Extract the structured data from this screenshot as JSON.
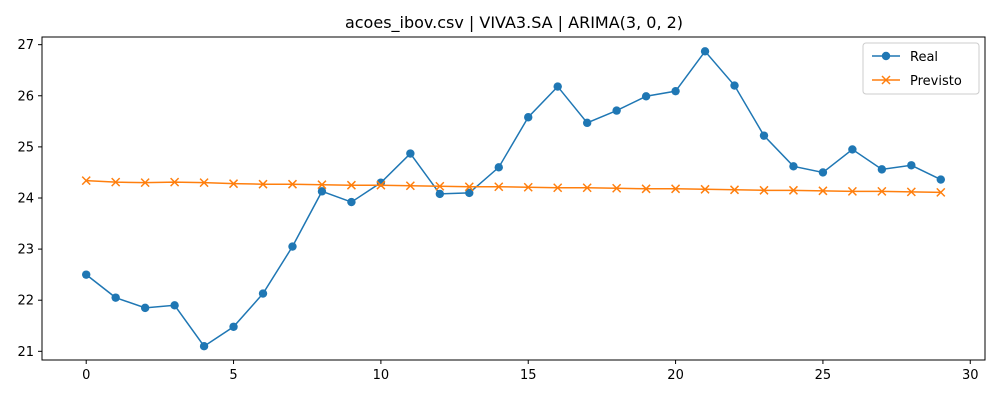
{
  "chart_data": {
    "type": "line",
    "title": "acoes_ibov.csv | VIVA3.SA | ARIMA(3, 0, 2)",
    "xlabel": "",
    "ylabel": "",
    "xlim": [
      -1.5,
      30.5
    ],
    "ylim": [
      20.83,
      27.15
    ],
    "xticks": [
      0,
      5,
      10,
      15,
      20,
      25,
      30
    ],
    "yticks": [
      21,
      22,
      23,
      24,
      25,
      26,
      27
    ],
    "grid": false,
    "legend_position": "top-right",
    "x": [
      0,
      1,
      2,
      3,
      4,
      5,
      6,
      7,
      8,
      9,
      10,
      11,
      12,
      13,
      14,
      15,
      16,
      17,
      18,
      19,
      20,
      21,
      22,
      23,
      24,
      25,
      26,
      27,
      28,
      29
    ],
    "series": [
      {
        "name": "Real",
        "color": "#1f77b4",
        "marker": "circle",
        "values": [
          22.5,
          22.05,
          21.85,
          21.9,
          21.1,
          21.48,
          22.13,
          23.05,
          24.13,
          23.92,
          24.3,
          24.87,
          24.08,
          24.1,
          24.6,
          25.58,
          26.18,
          25.47,
          25.71,
          25.99,
          26.09,
          26.87,
          26.2,
          25.22,
          24.62,
          24.5,
          24.95,
          24.56,
          24.64,
          24.36
        ]
      },
      {
        "name": "Previsto",
        "color": "#ff7f0e",
        "marker": "x",
        "values": [
          24.34,
          24.31,
          24.3,
          24.31,
          24.3,
          24.28,
          24.27,
          24.27,
          24.26,
          24.25,
          24.25,
          24.24,
          24.23,
          24.22,
          24.22,
          24.21,
          24.2,
          24.2,
          24.19,
          24.18,
          24.18,
          24.17,
          24.16,
          24.15,
          24.15,
          24.14,
          24.13,
          24.13,
          24.12,
          24.11
        ]
      }
    ]
  }
}
